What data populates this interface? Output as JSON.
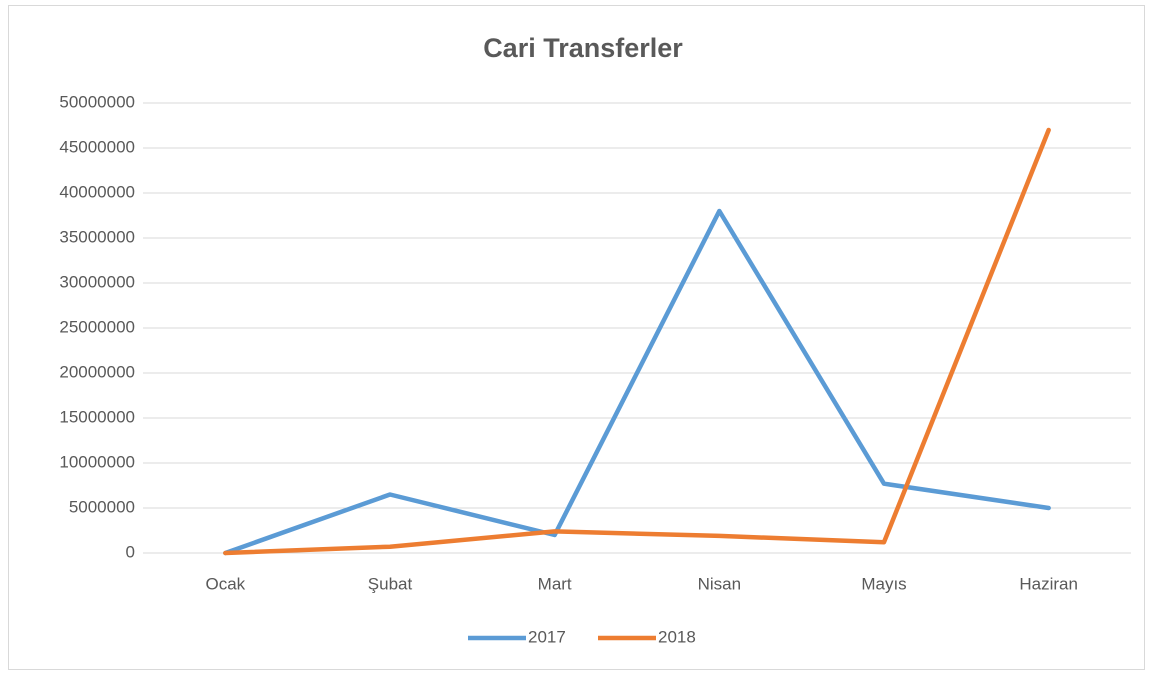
{
  "chart_data": {
    "type": "line",
    "title": "Cari Transferler",
    "categories": [
      "Ocak",
      "Şubat",
      "Mart",
      "Nisan",
      "Mayıs",
      "Haziran"
    ],
    "series": [
      {
        "name": "2017",
        "color": "#5b9bd5",
        "values": [
          0,
          6500000,
          2000000,
          38000000,
          7700000,
          5000000
        ]
      },
      {
        "name": "2018",
        "color": "#ed7d31",
        "values": [
          0,
          700000,
          2400000,
          1900000,
          1200000,
          47000000
        ]
      }
    ],
    "ylim": [
      0,
      50000000
    ],
    "yticks": [
      0,
      5000000,
      10000000,
      15000000,
      20000000,
      25000000,
      30000000,
      35000000,
      40000000,
      45000000,
      50000000
    ],
    "grid": true,
    "legend": "bottom"
  }
}
